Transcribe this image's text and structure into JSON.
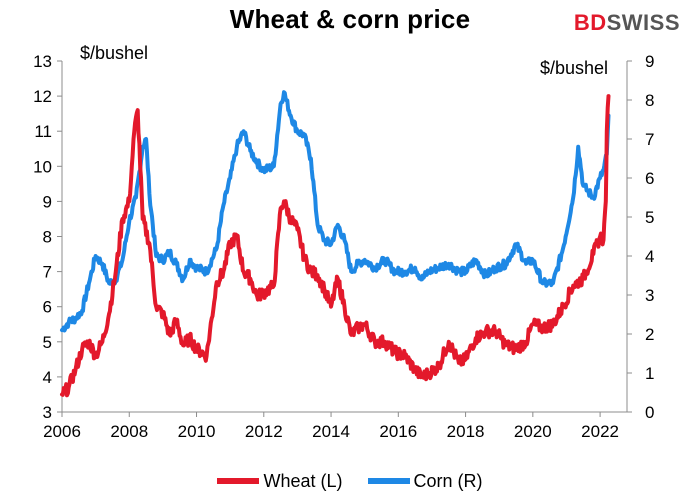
{
  "brand": {
    "bd": "BD",
    "swiss": "SWISS"
  },
  "chart_data": {
    "type": "line",
    "title": "Wheat & corn price",
    "left_axis": {
      "unit": "$/bushel",
      "ylim": [
        3,
        13
      ],
      "ticks": [
        3,
        4,
        5,
        6,
        7,
        8,
        9,
        10,
        11,
        12,
        13
      ]
    },
    "right_axis": {
      "unit": "$/bushel",
      "ylim": [
        0,
        9
      ],
      "ticks": [
        0,
        1,
        2,
        3,
        4,
        5,
        6,
        7,
        8,
        9
      ]
    },
    "x_axis": {
      "xlim": [
        2006,
        2022.8
      ],
      "ticks": [
        2006,
        2008,
        2010,
        2012,
        2014,
        2016,
        2018,
        2020,
        2022
      ]
    },
    "series": [
      {
        "name": "Wheat (L)",
        "axis": "left",
        "color": "#e3192b",
        "x": [
          2006.0,
          2006.2,
          2006.4,
          2006.6,
          2006.8,
          2007.0,
          2007.2,
          2007.4,
          2007.6,
          2007.8,
          2008.0,
          2008.15,
          2008.25,
          2008.4,
          2008.6,
          2008.8,
          2009.0,
          2009.2,
          2009.4,
          2009.6,
          2009.8,
          2010.0,
          2010.3,
          2010.6,
          2010.8,
          2011.0,
          2011.2,
          2011.4,
          2011.6,
          2011.8,
          2012.0,
          2012.3,
          2012.5,
          2012.6,
          2012.8,
          2013.0,
          2013.2,
          2013.4,
          2013.6,
          2013.8,
          2014.0,
          2014.2,
          2014.4,
          2014.6,
          2014.8,
          2015.0,
          2015.3,
          2015.6,
          2015.9,
          2016.2,
          2016.5,
          2016.7,
          2016.9,
          2017.2,
          2017.5,
          2017.8,
          2018.0,
          2018.3,
          2018.6,
          2018.9,
          2019.2,
          2019.5,
          2019.8,
          2020.0,
          2020.3,
          2020.6,
          2020.9,
          2021.2,
          2021.5,
          2021.8,
          2022.0,
          2022.1,
          2022.17,
          2022.2,
          2022.25
        ],
        "values": [
          3.5,
          3.7,
          4.2,
          4.8,
          5.0,
          4.6,
          5.0,
          5.8,
          7.0,
          8.5,
          9.0,
          11.0,
          11.6,
          8.5,
          7.8,
          6.0,
          5.8,
          5.2,
          5.6,
          4.9,
          5.1,
          4.8,
          4.6,
          6.7,
          7.0,
          7.8,
          8.0,
          7.0,
          6.8,
          6.3,
          6.4,
          6.6,
          8.8,
          9.0,
          8.5,
          8.2,
          7.4,
          7.0,
          6.9,
          6.5,
          6.0,
          6.8,
          6.0,
          5.2,
          5.4,
          5.5,
          5.0,
          5.0,
          4.7,
          4.6,
          4.2,
          4.0,
          4.1,
          4.3,
          5.0,
          4.4,
          4.5,
          5.1,
          5.3,
          5.3,
          4.9,
          4.8,
          5.0,
          5.5,
          5.4,
          5.5,
          6.0,
          6.6,
          6.8,
          7.5,
          8.0,
          7.9,
          9.0,
          11.0,
          12.0
        ]
      },
      {
        "name": "Corn (R)",
        "axis": "right",
        "color": "#1e88e5",
        "x": [
          2006.0,
          2006.2,
          2006.4,
          2006.6,
          2006.8,
          2007.0,
          2007.2,
          2007.4,
          2007.6,
          2007.8,
          2008.0,
          2008.2,
          2008.4,
          2008.5,
          2008.6,
          2008.8,
          2009.0,
          2009.2,
          2009.4,
          2009.6,
          2009.8,
          2010.0,
          2010.3,
          2010.6,
          2010.8,
          2011.0,
          2011.2,
          2011.4,
          2011.6,
          2011.8,
          2012.0,
          2012.3,
          2012.5,
          2012.6,
          2012.8,
          2013.0,
          2013.2,
          2013.4,
          2013.6,
          2013.8,
          2014.0,
          2014.2,
          2014.4,
          2014.6,
          2014.8,
          2015.0,
          2015.3,
          2015.6,
          2015.9,
          2016.2,
          2016.5,
          2016.7,
          2016.9,
          2017.2,
          2017.5,
          2017.8,
          2018.0,
          2018.3,
          2018.6,
          2018.9,
          2019.2,
          2019.5,
          2019.8,
          2020.0,
          2020.3,
          2020.6,
          2020.9,
          2021.2,
          2021.35,
          2021.5,
          2021.8,
          2022.0,
          2022.1,
          2022.2,
          2022.25
        ],
        "values": [
          2.1,
          2.3,
          2.4,
          2.6,
          3.3,
          4.0,
          3.8,
          3.3,
          3.4,
          3.9,
          4.9,
          5.5,
          6.8,
          7.0,
          5.6,
          4.0,
          3.9,
          4.1,
          3.8,
          3.4,
          3.9,
          3.7,
          3.6,
          4.2,
          5.3,
          6.0,
          6.8,
          7.2,
          6.7,
          6.4,
          6.2,
          6.3,
          7.9,
          8.2,
          7.6,
          7.2,
          7.1,
          6.5,
          4.8,
          4.4,
          4.3,
          4.8,
          4.4,
          3.6,
          3.8,
          3.9,
          3.7,
          3.9,
          3.6,
          3.6,
          3.7,
          3.4,
          3.6,
          3.7,
          3.8,
          3.6,
          3.6,
          3.9,
          3.5,
          3.7,
          3.8,
          4.3,
          3.8,
          3.9,
          3.3,
          3.3,
          4.2,
          5.5,
          6.8,
          5.8,
          5.5,
          6.0,
          6.2,
          6.6,
          7.6
        ]
      }
    ]
  }
}
